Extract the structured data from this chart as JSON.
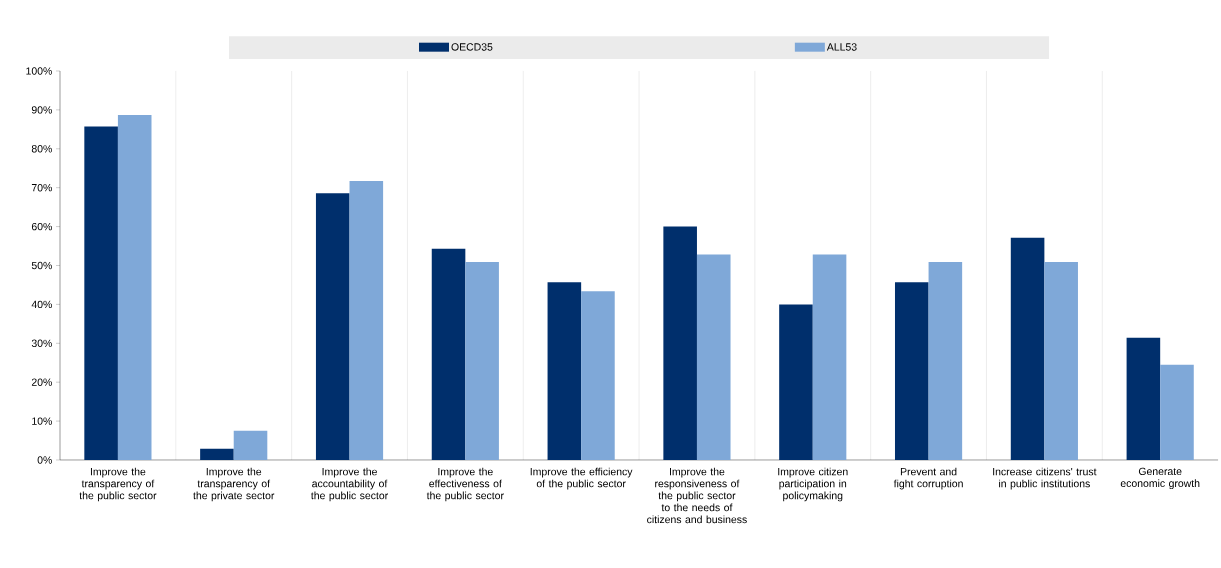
{
  "chart_data": {
    "type": "bar",
    "categories": [
      "Improve the transparency of the public sector",
      "Improve the transparency of the private sector",
      "Improve the accountability of the public sector",
      "Improve the effectiveness of the public sector",
      "Improve the efficiency of the public sector",
      "Improve the responsiveness of the public sector to the needs of citizens and business",
      "Improve citizen participation in policymaking",
      "Prevent and fight corruption",
      "Increase citizens' trust in public institutions",
      "Generate economic growth"
    ],
    "series": [
      {
        "name": "OECD35",
        "color": "#002f6c",
        "values": [
          85.7,
          2.9,
          68.6,
          54.3,
          45.7,
          60.0,
          40.0,
          45.7,
          57.1,
          31.4
        ]
      },
      {
        "name": "ALL53",
        "color": "#7fa8d8",
        "values": [
          88.7,
          7.5,
          71.7,
          50.9,
          43.4,
          52.8,
          52.8,
          50.9,
          50.9,
          24.5
        ]
      }
    ],
    "ylim": [
      0,
      100
    ],
    "yticks": [
      {
        "value": 0,
        "label": "0%"
      },
      {
        "value": 10,
        "label": "10%"
      },
      {
        "value": 20,
        "label": "20%"
      },
      {
        "value": 30,
        "label": "30%"
      },
      {
        "value": 40,
        "label": "40%"
      },
      {
        "value": 50,
        "label": "50%"
      },
      {
        "value": 60,
        "label": "60%"
      },
      {
        "value": 70,
        "label": "70%"
      },
      {
        "value": 80,
        "label": "80%"
      },
      {
        "value": 90,
        "label": "90%"
      },
      {
        "value": 100,
        "label": "100%"
      }
    ],
    "grid": "x",
    "legend": "top"
  }
}
